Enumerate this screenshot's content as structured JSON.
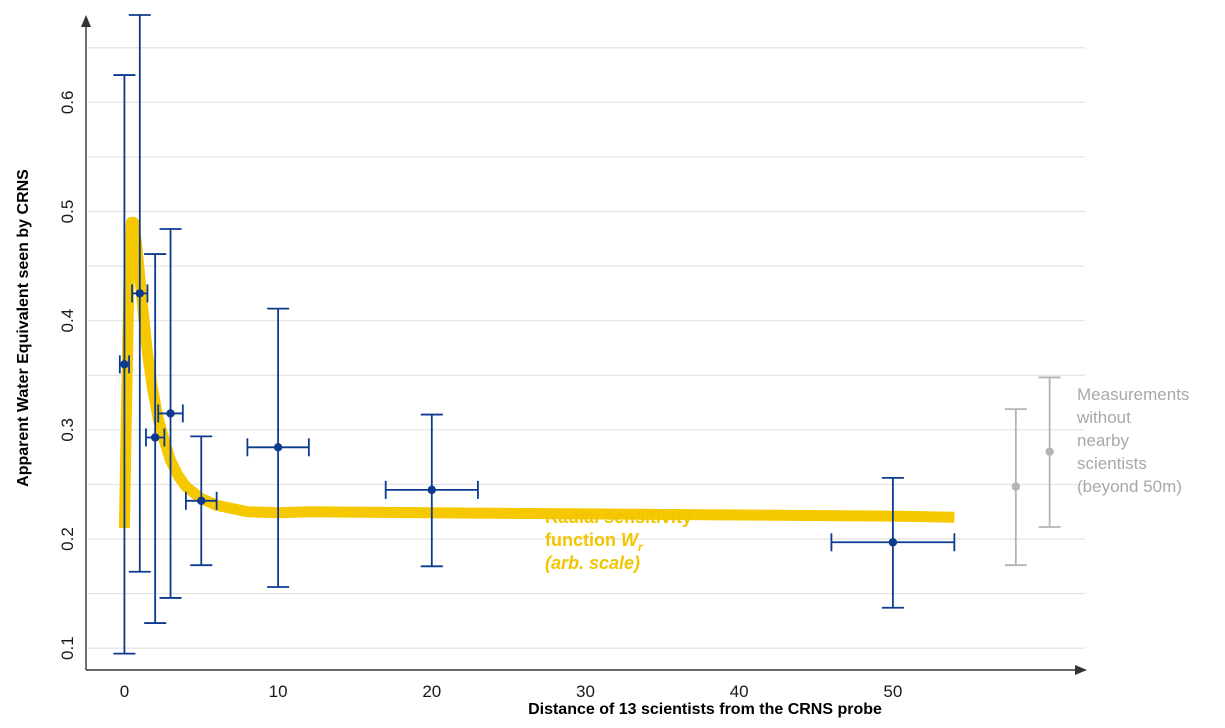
{
  "chart_data": {
    "type": "scatter",
    "xlabel": "Distance of 13 scientists from the CRNS probe",
    "ylabel": "Apparent Water Equivalent seen by CRNS",
    "xlim": [
      -2.5,
      62.5
    ],
    "ylim": [
      0.08,
      0.68
    ],
    "x_ticks": [
      0,
      10,
      20,
      30,
      40,
      50
    ],
    "y_ticks": [
      0.1,
      0.2,
      0.3,
      0.4,
      0.5,
      0.6
    ],
    "grid": "horizontal",
    "colors": {
      "points": "#0c3a8f",
      "curve": "#f5c800",
      "outside": "#b4b4b4"
    },
    "series": [
      {
        "points": [
          {
            "x": 0,
            "y": 0.36,
            "ylo": 0.095,
            "yhi": 0.625,
            "xerr": 0.3
          },
          {
            "x": 1,
            "y": 0.425,
            "ylo": 0.17,
            "yhi": 0.68,
            "xerr": 0.5
          },
          {
            "x": 2,
            "y": 0.293,
            "ylo": 0.123,
            "yhi": 0.461,
            "xerr": 0.6
          },
          {
            "x": 3,
            "y": 0.315,
            "ylo": 0.146,
            "yhi": 0.484,
            "xerr": 0.8
          },
          {
            "x": 5,
            "y": 0.235,
            "ylo": 0.176,
            "yhi": 0.294,
            "xerr": 1.0
          },
          {
            "x": 10,
            "y": 0.284,
            "ylo": 0.156,
            "yhi": 0.411,
            "xerr": 2.0
          },
          {
            "x": 20,
            "y": 0.245,
            "ylo": 0.175,
            "yhi": 0.314,
            "xerr": 3.0
          },
          {
            "x": 50,
            "y": 0.197,
            "ylo": 0.137,
            "yhi": 0.256,
            "xerr": 4.0
          }
        ]
      },
      {
        "points": [
          {
            "x": 58,
            "y": 0.248,
            "ylo": 0.176,
            "yhi": 0.319
          },
          {
            "x": 60.2,
            "y": 0.28,
            "ylo": 0.211,
            "yhi": 0.348
          }
        ]
      }
    ],
    "curve": {
      "x": [
        0,
        0.15,
        0.3,
        0.45,
        0.6,
        0.8,
        1.0,
        1.2,
        1.5,
        1.8,
        2.2,
        2.6,
        3.0,
        3.5,
        4.0,
        5.0,
        6.0,
        8.0,
        10,
        12,
        20,
        30,
        40,
        50,
        54
      ],
      "y": [
        0.21,
        0.33,
        0.44,
        0.49,
        0.49,
        0.47,
        0.44,
        0.41,
        0.37,
        0.34,
        0.31,
        0.29,
        0.272,
        0.258,
        0.248,
        0.237,
        0.231,
        0.225,
        0.224,
        0.225,
        0.224,
        0.223,
        0.222,
        0.221,
        0.22
      ]
    },
    "annotations": {
      "outside_lines": [
        "Measurements",
        "without",
        "nearby",
        "scientists",
        "(beyond 50m)"
      ],
      "curve_line1": "Radial sensitivity",
      "curve_line2": "function ",
      "curve_symbol": "W",
      "curve_subscript": "r",
      "curve_line3": "(arb. scale)"
    }
  }
}
